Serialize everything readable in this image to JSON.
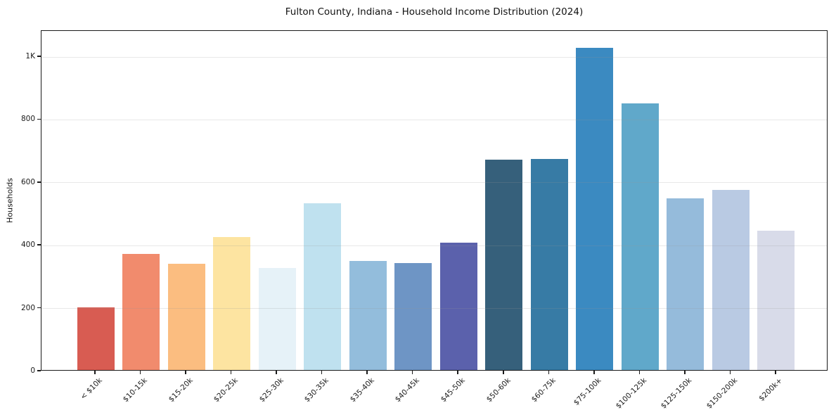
{
  "chart_data": {
    "type": "bar",
    "title": "Fulton County, Indiana - Household Income Distribution (2024)",
    "xlabel": "",
    "ylabel": "Households",
    "categories": [
      "< $10k",
      "$10-15k",
      "$15-20k",
      "$20-25k",
      "$25-30k",
      "$30-35k",
      "$35-40k",
      "$40-45k",
      "$45-50k",
      "$50-60k",
      "$60-75k",
      "$75-100k",
      "$100-125k",
      "$125-150k",
      "$150-200k",
      "$200k+"
    ],
    "values": [
      200,
      369,
      338,
      422,
      325,
      530,
      347,
      341,
      405,
      670,
      672,
      1025,
      849,
      545,
      572,
      443
    ],
    "bar_colors": [
      "#d85c52",
      "#f18b6d",
      "#fbbd80",
      "#fde4a1",
      "#e6f2f8",
      "#bfe1ef",
      "#93bddc",
      "#6e95c5",
      "#5b61ac",
      "#36607b",
      "#377ba5",
      "#3b8ac1",
      "#60a8ca",
      "#95bbdb",
      "#b9cae3",
      "#d8dbe9"
    ],
    "ylim": [
      0,
      1083
    ],
    "yticks": [
      {
        "v": 0,
        "label": "0"
      },
      {
        "v": 200,
        "label": "200"
      },
      {
        "v": 400,
        "label": "400"
      },
      {
        "v": 600,
        "label": "600"
      },
      {
        "v": 800,
        "label": "800"
      },
      {
        "v": 1000,
        "label": "1K"
      }
    ],
    "grid": "horizontal",
    "legend": "none",
    "background": "#ffffff",
    "spine_color": "#1a1a1a"
  }
}
